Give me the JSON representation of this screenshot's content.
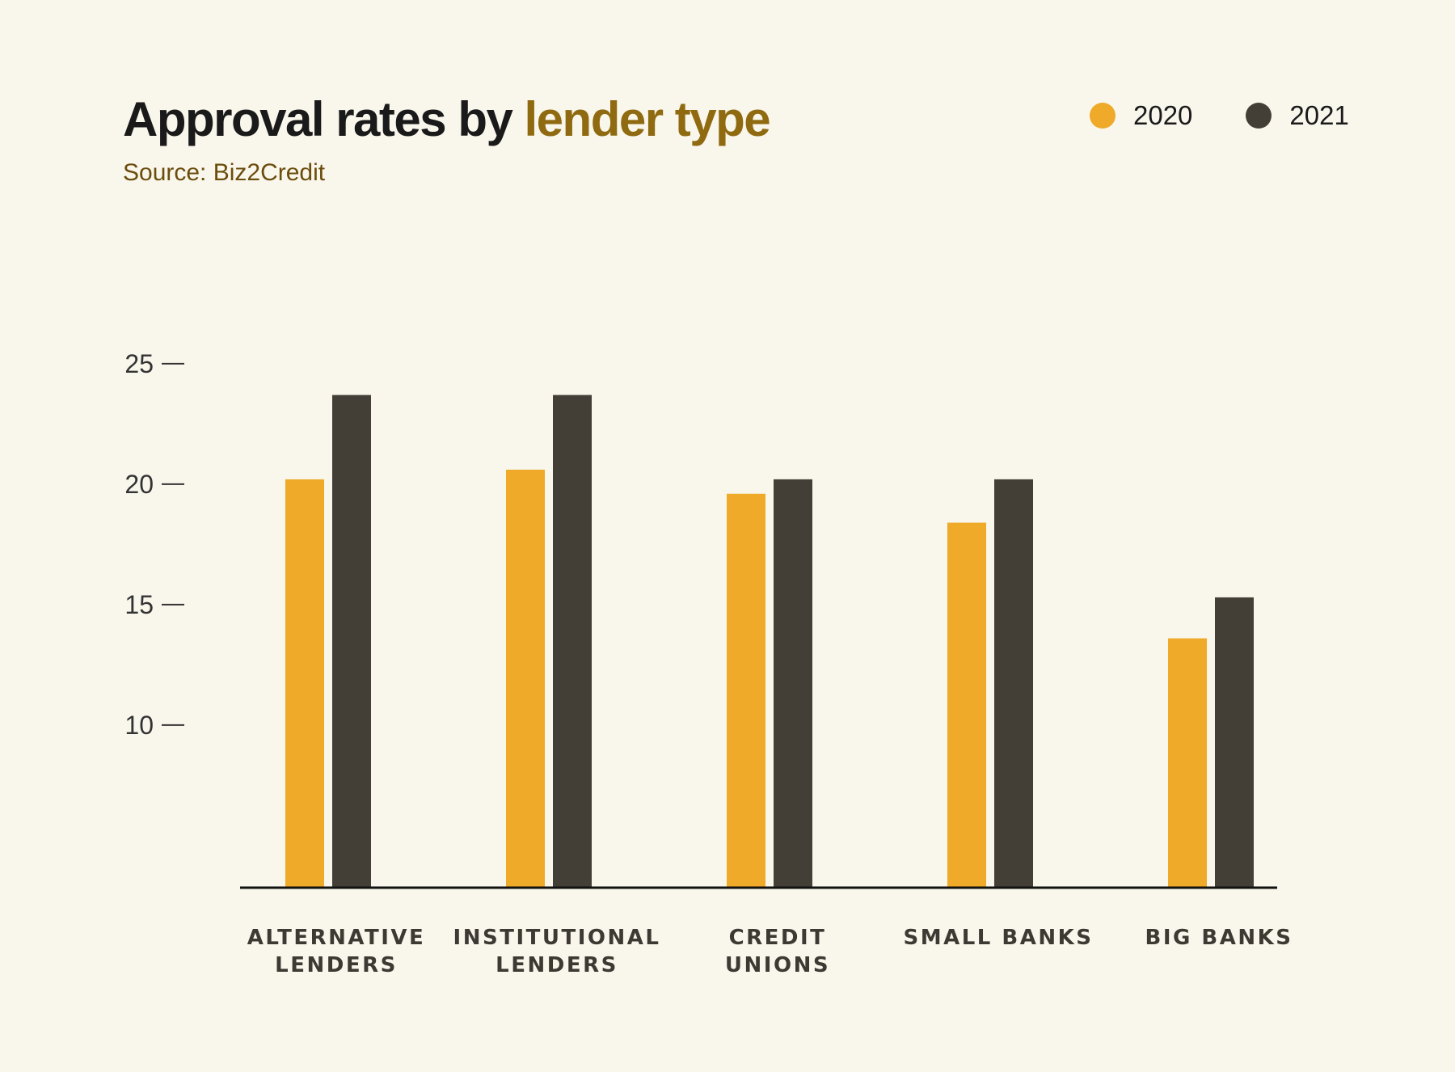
{
  "header": {
    "title_main": "Approval rates by ",
    "title_accent": "lender type",
    "source": "Source: Biz2Credit"
  },
  "colors": {
    "background": "#f9f6ec",
    "series_2020": "#eeaa28",
    "series_2021": "#433f37",
    "title_accent": "#8f6a10",
    "source_text": "#6b4d0c"
  },
  "chart_data": {
    "type": "bar",
    "title": "Approval rates by lender type",
    "subtitle": "Source: Biz2Credit",
    "categories": [
      [
        "ALTERNATIVE",
        "LENDERS"
      ],
      [
        "INSTITUTIONAL",
        "LENDERS"
      ],
      [
        "CREDIT",
        "UNIONS"
      ],
      [
        "SMALL BANKS"
      ],
      [
        "BIG BANKS"
      ]
    ],
    "series": [
      {
        "name": "2020",
        "color": "#eeaa28",
        "values": [
          20.2,
          20.6,
          19.6,
          18.4,
          13.6
        ]
      },
      {
        "name": "2021",
        "color": "#433f37",
        "values": [
          23.7,
          23.7,
          20.2,
          20.2,
          15.3
        ]
      }
    ],
    "yticks": [
      10,
      15,
      20,
      25
    ],
    "ylim": [
      3.25,
      25
    ],
    "xlabel": "",
    "ylabel": "",
    "legend_position": "top-right",
    "grid": false
  }
}
